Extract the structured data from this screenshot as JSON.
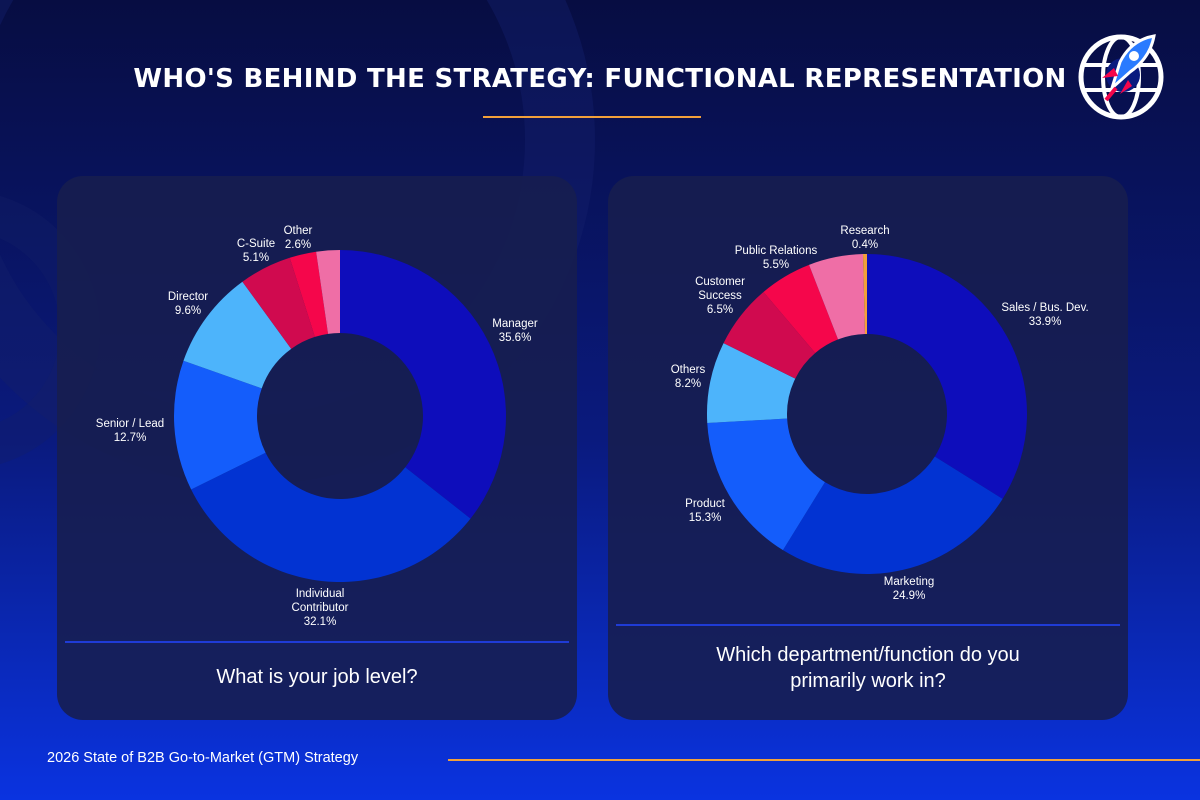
{
  "header": {
    "title": "WHO'S BEHIND THE STRATEGY: FUNCTIONAL REPRESENTATION"
  },
  "footer": {
    "text": "2026 State of B2B Go-to-Market (GTM) Strategy"
  },
  "colors": {
    "accent_orange": "#f2a03a",
    "bg_top": "#070d42",
    "bg_bottom": "#0a33e0",
    "panel": "#171e4e"
  },
  "icons": [
    "globe-rocket-logo-icon"
  ],
  "chart_data": [
    {
      "type": "pie",
      "question": "What is your job level?",
      "slices": [
        {
          "label": "Manager",
          "value": 35.6,
          "display": "35.6%",
          "color": "#0e0dbb"
        },
        {
          "label": "Individual Contributor",
          "value": 32.1,
          "display": "32.1%",
          "color": "#0233d2"
        },
        {
          "label": "Senior / Lead",
          "value": 12.7,
          "display": "12.7%",
          "color": "#145dfb"
        },
        {
          "label": "Director",
          "value": 9.6,
          "display": "9.6%",
          "color": "#4db4fb"
        },
        {
          "label": "C-Suite",
          "value": 5.1,
          "display": "5.1%",
          "color": "#d00a4f"
        },
        {
          "label": "Other",
          "value": 2.6,
          "display": "2.6%",
          "color": "#f5064b"
        },
        {
          "label": "",
          "value": 2.3,
          "display": "",
          "color": "#ef6ea6"
        }
      ]
    },
    {
      "type": "pie",
      "question": "Which department/function do you primarily work in?",
      "slices": [
        {
          "label": "Sales / Bus. Dev.",
          "value": 33.9,
          "display": "33.9%",
          "color": "#0e0dbb"
        },
        {
          "label": "Marketing",
          "value": 24.9,
          "display": "24.9%",
          "color": "#0233d2"
        },
        {
          "label": "Product",
          "value": 15.3,
          "display": "15.3%",
          "color": "#145dfb"
        },
        {
          "label": "Others",
          "value": 8.2,
          "display": "8.2%",
          "color": "#4db4fb"
        },
        {
          "label": "Customer Success",
          "value": 6.5,
          "display": "6.5%",
          "color": "#d00a4f"
        },
        {
          "label": "",
          "value": 5.3,
          "display": "",
          "color": "#f5064b"
        },
        {
          "label": "Public Relations",
          "value": 5.5,
          "display": "5.5%",
          "color": "#ef6ea6"
        },
        {
          "label": "Research",
          "value": 0.4,
          "display": "0.4%",
          "color": "#f2a03a"
        }
      ]
    }
  ]
}
